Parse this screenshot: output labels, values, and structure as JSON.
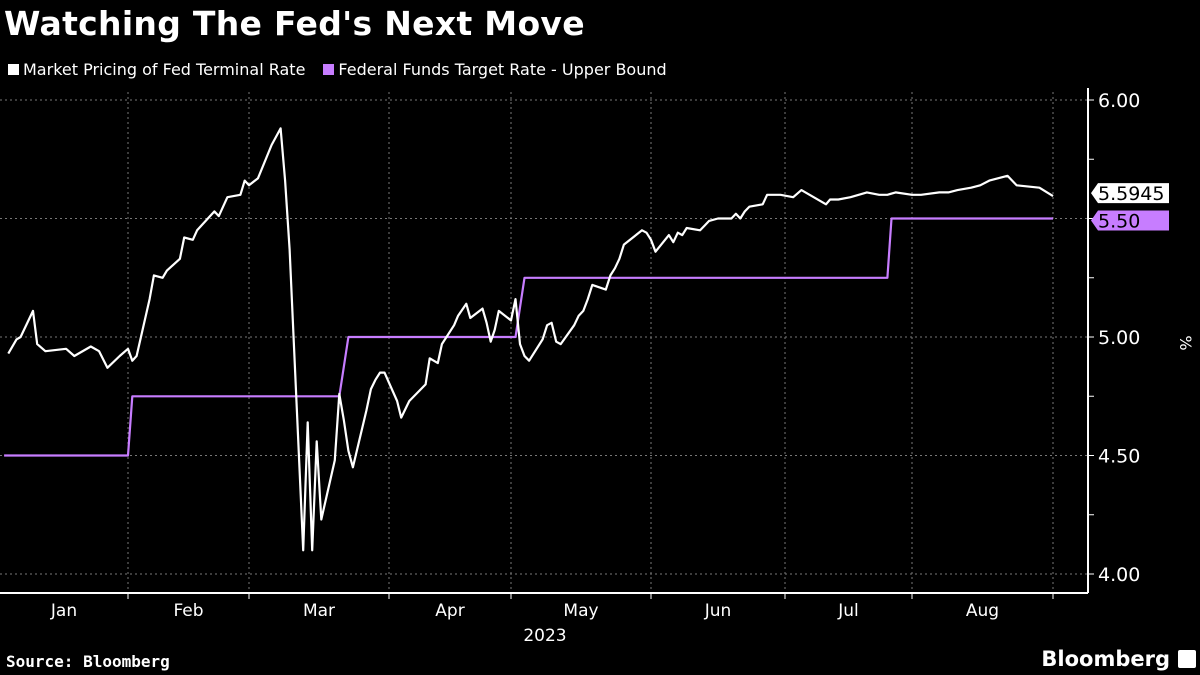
{
  "title": "Watching The Fed's Next Move",
  "source": "Source: Bloomberg",
  "brand": "Bloomberg",
  "chart_data": {
    "type": "line",
    "title": "Watching The Fed's Next Move",
    "ylabel": "%",
    "xlabel": "2023",
    "ylim": [
      4.0,
      6.0
    ],
    "yticks": [
      "4.00",
      "4.50",
      "5.00",
      "5.50",
      "6.00"
    ],
    "xticks": [
      "Jan",
      "Feb",
      "Mar",
      "Apr",
      "May",
      "Jun",
      "Jul",
      "Aug"
    ],
    "grid": true,
    "legend_position": "top-left",
    "series": [
      {
        "name": "Market Pricing of Fed Terminal Rate",
        "color": "#ffffff",
        "last_label": "5.5945",
        "points": [
          [
            "2023-01-03",
            4.93
          ],
          [
            "2023-01-05",
            4.99
          ],
          [
            "2023-01-06",
            5.0
          ],
          [
            "2023-01-09",
            5.11
          ],
          [
            "2023-01-10",
            4.97
          ],
          [
            "2023-01-12",
            4.94
          ],
          [
            "2023-01-17",
            4.95
          ],
          [
            "2023-01-19",
            4.92
          ],
          [
            "2023-01-23",
            4.96
          ],
          [
            "2023-01-25",
            4.94
          ],
          [
            "2023-01-27",
            4.87
          ],
          [
            "2023-01-30",
            4.92
          ],
          [
            "2023-02-01",
            4.95
          ],
          [
            "2023-02-02",
            4.9
          ],
          [
            "2023-02-03",
            4.92
          ],
          [
            "2023-02-06",
            5.16
          ],
          [
            "2023-02-07",
            5.26
          ],
          [
            "2023-02-09",
            5.25
          ],
          [
            "2023-02-10",
            5.28
          ],
          [
            "2023-02-13",
            5.33
          ],
          [
            "2023-02-14",
            5.42
          ],
          [
            "2023-02-16",
            5.41
          ],
          [
            "2023-02-17",
            5.45
          ],
          [
            "2023-02-21",
            5.53
          ],
          [
            "2023-02-22",
            5.51
          ],
          [
            "2023-02-24",
            5.59
          ],
          [
            "2023-02-27",
            5.6
          ],
          [
            "2023-02-28",
            5.66
          ],
          [
            "2023-03-01",
            5.64
          ],
          [
            "2023-03-03",
            5.67
          ],
          [
            "2023-03-06",
            5.81
          ],
          [
            "2023-03-08",
            5.88
          ],
          [
            "2023-03-09",
            5.66
          ],
          [
            "2023-03-10",
            5.37
          ],
          [
            "2023-03-13",
            4.1
          ],
          [
            "2023-03-14",
            4.64
          ],
          [
            "2023-03-15",
            4.1
          ],
          [
            "2023-03-16",
            4.56
          ],
          [
            "2023-03-17",
            4.23
          ],
          [
            "2023-03-20",
            4.48
          ],
          [
            "2023-03-21",
            4.76
          ],
          [
            "2023-03-22",
            4.65
          ],
          [
            "2023-03-23",
            4.52
          ],
          [
            "2023-03-24",
            4.45
          ],
          [
            "2023-03-27",
            4.69
          ],
          [
            "2023-03-28",
            4.78
          ],
          [
            "2023-03-29",
            4.82
          ],
          [
            "2023-03-30",
            4.85
          ],
          [
            "2023-03-31",
            4.85
          ],
          [
            "2023-04-03",
            4.73
          ],
          [
            "2023-04-04",
            4.66
          ],
          [
            "2023-04-06",
            4.73
          ],
          [
            "2023-04-10",
            4.8
          ],
          [
            "2023-04-11",
            4.91
          ],
          [
            "2023-04-13",
            4.89
          ],
          [
            "2023-04-14",
            4.97
          ],
          [
            "2023-04-17",
            5.05
          ],
          [
            "2023-04-18",
            5.09
          ],
          [
            "2023-04-20",
            5.14
          ],
          [
            "2023-04-21",
            5.08
          ],
          [
            "2023-04-24",
            5.12
          ],
          [
            "2023-04-25",
            5.06
          ],
          [
            "2023-04-26",
            4.98
          ],
          [
            "2023-04-27",
            5.03
          ],
          [
            "2023-04-28",
            5.11
          ],
          [
            "2023-05-01",
            5.07
          ],
          [
            "2023-05-02",
            5.16
          ],
          [
            "2023-05-03",
            4.97
          ],
          [
            "2023-05-04",
            4.92
          ],
          [
            "2023-05-05",
            4.9
          ],
          [
            "2023-05-08",
            4.99
          ],
          [
            "2023-05-09",
            5.05
          ],
          [
            "2023-05-10",
            5.06
          ],
          [
            "2023-05-11",
            4.98
          ],
          [
            "2023-05-12",
            4.97
          ],
          [
            "2023-05-15",
            5.05
          ],
          [
            "2023-05-16",
            5.09
          ],
          [
            "2023-05-17",
            5.11
          ],
          [
            "2023-05-18",
            5.16
          ],
          [
            "2023-05-19",
            5.22
          ],
          [
            "2023-05-22",
            5.2
          ],
          [
            "2023-05-23",
            5.26
          ],
          [
            "2023-05-24",
            5.29
          ],
          [
            "2023-05-25",
            5.33
          ],
          [
            "2023-05-26",
            5.39
          ],
          [
            "2023-05-30",
            5.45
          ],
          [
            "2023-05-31",
            5.44
          ],
          [
            "2023-06-01",
            5.41
          ],
          [
            "2023-06-02",
            5.36
          ],
          [
            "2023-06-05",
            5.43
          ],
          [
            "2023-06-06",
            5.4
          ],
          [
            "2023-06-07",
            5.44
          ],
          [
            "2023-06-08",
            5.43
          ],
          [
            "2023-06-09",
            5.46
          ],
          [
            "2023-06-12",
            5.45
          ],
          [
            "2023-06-13",
            5.47
          ],
          [
            "2023-06-14",
            5.49
          ],
          [
            "2023-06-16",
            5.5
          ],
          [
            "2023-06-19",
            5.5
          ],
          [
            "2023-06-20",
            5.52
          ],
          [
            "2023-06-21",
            5.5
          ],
          [
            "2023-06-22",
            5.53
          ],
          [
            "2023-06-23",
            5.55
          ],
          [
            "2023-06-26",
            5.56
          ],
          [
            "2023-06-27",
            5.6
          ],
          [
            "2023-06-28",
            5.6
          ],
          [
            "2023-06-30",
            5.6
          ],
          [
            "2023-07-03",
            5.59
          ],
          [
            "2023-07-05",
            5.62
          ],
          [
            "2023-07-06",
            5.61
          ],
          [
            "2023-07-07",
            5.6
          ],
          [
            "2023-07-10",
            5.57
          ],
          [
            "2023-07-11",
            5.56
          ],
          [
            "2023-07-12",
            5.58
          ],
          [
            "2023-07-14",
            5.58
          ],
          [
            "2023-07-17",
            5.59
          ],
          [
            "2023-07-19",
            5.6
          ],
          [
            "2023-07-21",
            5.61
          ],
          [
            "2023-07-24",
            5.6
          ],
          [
            "2023-07-26",
            5.6
          ],
          [
            "2023-07-28",
            5.61
          ],
          [
            "2023-08-01",
            5.6
          ],
          [
            "2023-08-03",
            5.6
          ],
          [
            "2023-08-07",
            5.61
          ],
          [
            "2023-08-09",
            5.61
          ],
          [
            "2023-08-11",
            5.62
          ],
          [
            "2023-08-14",
            5.63
          ],
          [
            "2023-08-16",
            5.64
          ],
          [
            "2023-08-18",
            5.66
          ],
          [
            "2023-08-22",
            5.68
          ],
          [
            "2023-08-24",
            5.64
          ],
          [
            "2023-08-29",
            5.63
          ],
          [
            "2023-09-01",
            5.5945
          ]
        ]
      },
      {
        "name": "Federal Funds Target Rate - Upper Bound",
        "color": "#c77dff",
        "last_label": "5.50",
        "points": [
          [
            "2023-01-02",
            4.5
          ],
          [
            "2023-02-01",
            4.5
          ],
          [
            "2023-02-02",
            4.75
          ],
          [
            "2023-03-21",
            4.75
          ],
          [
            "2023-03-23",
            5.0
          ],
          [
            "2023-05-02",
            5.0
          ],
          [
            "2023-05-04",
            5.25
          ],
          [
            "2023-07-26",
            5.25
          ],
          [
            "2023-07-27",
            5.5
          ],
          [
            "2023-09-01",
            5.5
          ]
        ]
      }
    ]
  }
}
